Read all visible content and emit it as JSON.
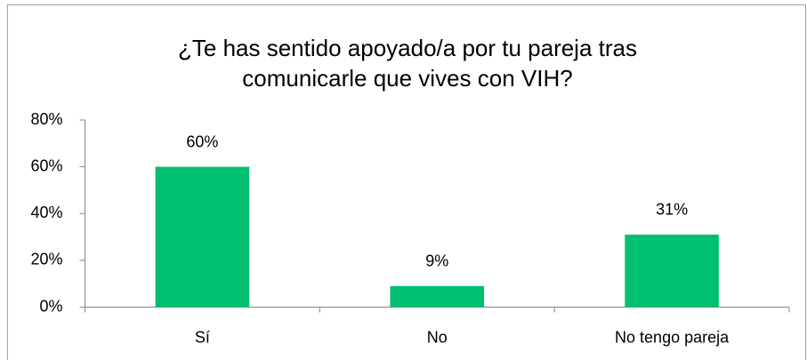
{
  "chart_data": {
    "type": "bar",
    "title": [
      "¿Te has sentido apoyado/a por tu pareja tras",
      "comunicarle que vives con VIH?"
    ],
    "categories": [
      "Sí",
      "No",
      "No tengo pareja"
    ],
    "values": [
      60,
      9,
      31
    ],
    "value_labels": [
      "60%",
      "9%",
      "31%"
    ],
    "color": "#00bf6f",
    "ylim": [
      0,
      80
    ],
    "yticks": [
      {
        "value": 0,
        "label": "0%"
      },
      {
        "value": 20,
        "label": "20%"
      },
      {
        "value": 40,
        "label": "40%"
      },
      {
        "value": 60,
        "label": "60%"
      },
      {
        "value": 80,
        "label": "80%"
      }
    ],
    "grid": false
  }
}
